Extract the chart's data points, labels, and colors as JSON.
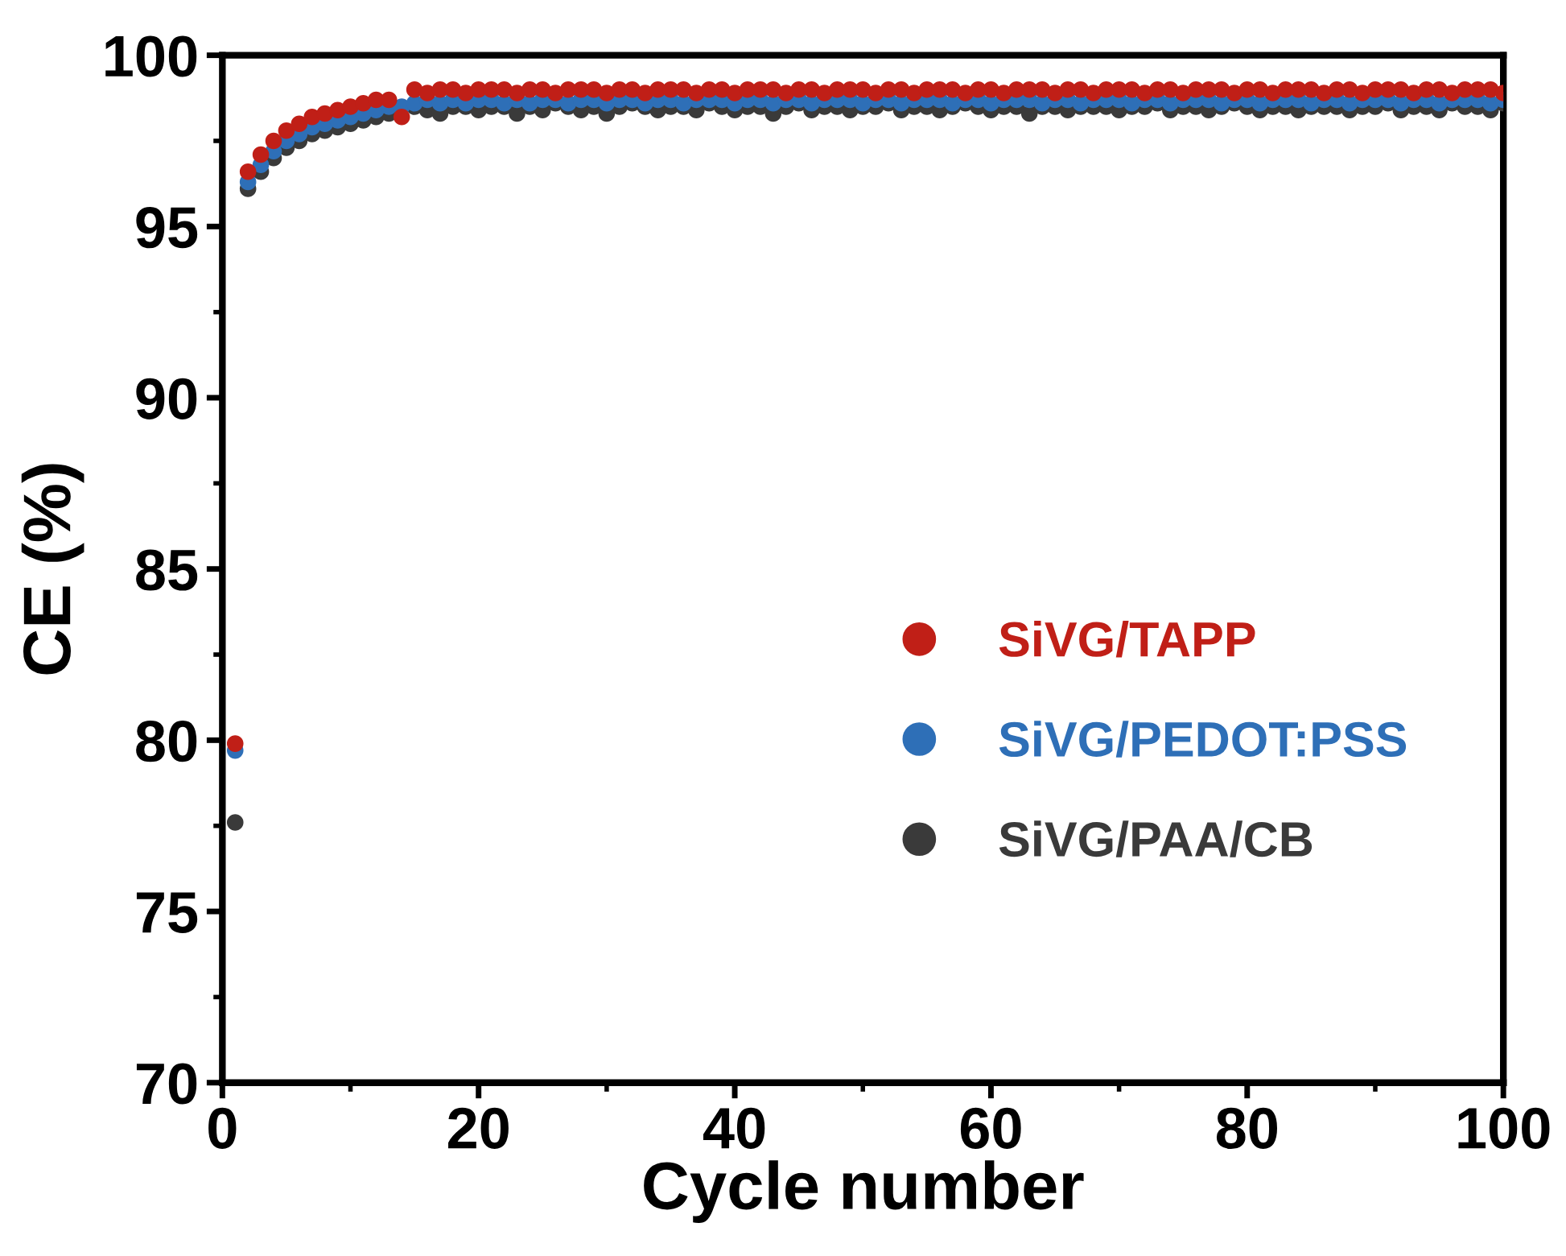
{
  "chart_data": {
    "type": "scatter",
    "xlabel": "Cycle number",
    "ylabel": "CE (%)",
    "x": [
      1,
      2,
      3,
      4,
      5,
      6,
      7,
      8,
      9,
      10,
      11,
      12,
      13,
      14,
      15,
      16,
      17,
      18,
      19,
      20,
      21,
      22,
      23,
      24,
      25,
      26,
      27,
      28,
      29,
      30,
      31,
      32,
      33,
      34,
      35,
      36,
      37,
      38,
      39,
      40,
      41,
      42,
      43,
      44,
      45,
      46,
      47,
      48,
      49,
      50,
      51,
      52,
      53,
      54,
      55,
      56,
      57,
      58,
      59,
      60,
      61,
      62,
      63,
      64,
      65,
      66,
      67,
      68,
      69,
      70,
      71,
      72,
      73,
      74,
      75,
      76,
      77,
      78,
      79,
      80,
      81,
      82,
      83,
      84,
      85,
      86,
      87,
      88,
      89,
      90,
      91,
      92,
      93,
      94,
      95,
      96,
      97,
      98,
      99,
      100
    ],
    "xlim": [
      0,
      100
    ],
    "xticks": [
      0,
      20,
      40,
      60,
      80,
      100
    ],
    "ylim": [
      70,
      100
    ],
    "yticks": [
      70,
      75,
      80,
      85,
      90,
      95,
      100
    ],
    "marker": "circle",
    "grid": false,
    "legend": "right",
    "series": [
      {
        "name": "SiVG/PAA/CB",
        "color": "#3a3a3a",
        "values": [
          77.6,
          96.1,
          96.6,
          97.0,
          97.3,
          97.5,
          97.7,
          97.8,
          97.9,
          98.0,
          98.1,
          98.2,
          98.3,
          null,
          98.5,
          98.4,
          98.3,
          98.5,
          98.5,
          98.4,
          98.5,
          98.5,
          98.3,
          98.5,
          98.4,
          98.6,
          98.5,
          98.4,
          98.5,
          98.3,
          98.5,
          98.6,
          98.5,
          98.4,
          98.5,
          98.5,
          98.4,
          98.6,
          98.5,
          98.4,
          98.5,
          98.5,
          98.3,
          98.5,
          98.6,
          98.4,
          98.5,
          98.5,
          98.4,
          98.5,
          98.5,
          98.6,
          98.4,
          98.5,
          98.5,
          98.4,
          98.5,
          98.6,
          98.5,
          98.4,
          98.5,
          98.5,
          98.3,
          98.5,
          98.5,
          98.4,
          98.5,
          98.5,
          98.5,
          98.4,
          98.5,
          98.5,
          98.6,
          98.4,
          98.5,
          98.5,
          98.4,
          98.5,
          98.6,
          98.5,
          98.4,
          98.5,
          98.5,
          98.4,
          98.5,
          98.5,
          98.5,
          98.4,
          98.5,
          98.5,
          98.6,
          98.4,
          98.5,
          98.5,
          98.4,
          98.6,
          98.5,
          98.5,
          98.4,
          98.6
        ]
      },
      {
        "name": "SiVG/PEDOT:PSS",
        "color": "#2e6fb7",
        "values": [
          79.7,
          96.3,
          96.8,
          97.2,
          97.5,
          97.7,
          97.9,
          98.0,
          98.1,
          98.2,
          98.3,
          98.4,
          98.5,
          98.5,
          98.6,
          98.7,
          98.6,
          98.7,
          98.6,
          98.7,
          98.7,
          98.6,
          98.7,
          98.6,
          98.7,
          98.7,
          98.6,
          98.7,
          98.7,
          98.6,
          98.7,
          98.7,
          98.6,
          98.7,
          98.7,
          98.6,
          98.7,
          98.7,
          98.7,
          98.6,
          98.7,
          98.7,
          98.6,
          98.7,
          98.7,
          98.6,
          98.7,
          98.7,
          98.7,
          98.6,
          98.7,
          98.7,
          98.6,
          98.7,
          98.7,
          98.7,
          98.6,
          98.7,
          98.7,
          98.6,
          98.7,
          98.7,
          98.7,
          98.6,
          98.7,
          98.7,
          98.6,
          98.7,
          98.7,
          98.7,
          98.6,
          98.7,
          98.7,
          98.6,
          98.7,
          98.7,
          98.7,
          98.6,
          98.7,
          98.7,
          98.6,
          98.7,
          98.7,
          98.7,
          98.6,
          98.7,
          98.7,
          98.6,
          98.7,
          98.7,
          98.7,
          98.6,
          98.7,
          98.7,
          98.6,
          98.7,
          98.7,
          98.7,
          98.6,
          98.7
        ]
      },
      {
        "name": "SiVG/TAPP",
        "color": "#c01f17",
        "values": [
          79.9,
          96.6,
          97.1,
          97.5,
          97.8,
          98.0,
          98.2,
          98.3,
          98.4,
          98.5,
          98.6,
          98.7,
          98.7,
          98.2,
          99.0,
          98.9,
          99.0,
          99.0,
          98.9,
          99.0,
          99.0,
          99.0,
          98.9,
          99.0,
          99.0,
          98.9,
          99.0,
          99.0,
          99.0,
          98.9,
          99.0,
          99.0,
          98.9,
          99.0,
          99.0,
          99.0,
          98.9,
          99.0,
          99.0,
          98.9,
          99.0,
          99.0,
          99.0,
          98.9,
          99.0,
          99.0,
          98.9,
          99.0,
          99.0,
          99.0,
          98.9,
          99.0,
          99.0,
          98.9,
          99.0,
          99.0,
          99.0,
          98.9,
          99.0,
          99.0,
          98.9,
          99.0,
          99.0,
          99.0,
          98.9,
          99.0,
          99.0,
          98.9,
          99.0,
          99.0,
          99.0,
          98.9,
          99.0,
          99.0,
          98.9,
          99.0,
          99.0,
          99.0,
          98.9,
          99.0,
          99.0,
          98.9,
          99.0,
          99.0,
          99.0,
          98.9,
          99.0,
          99.0,
          98.9,
          99.0,
          99.0,
          99.0,
          98.9,
          99.0,
          99.0,
          98.9,
          99.0,
          99.0,
          99.0,
          98.9
        ]
      }
    ]
  }
}
